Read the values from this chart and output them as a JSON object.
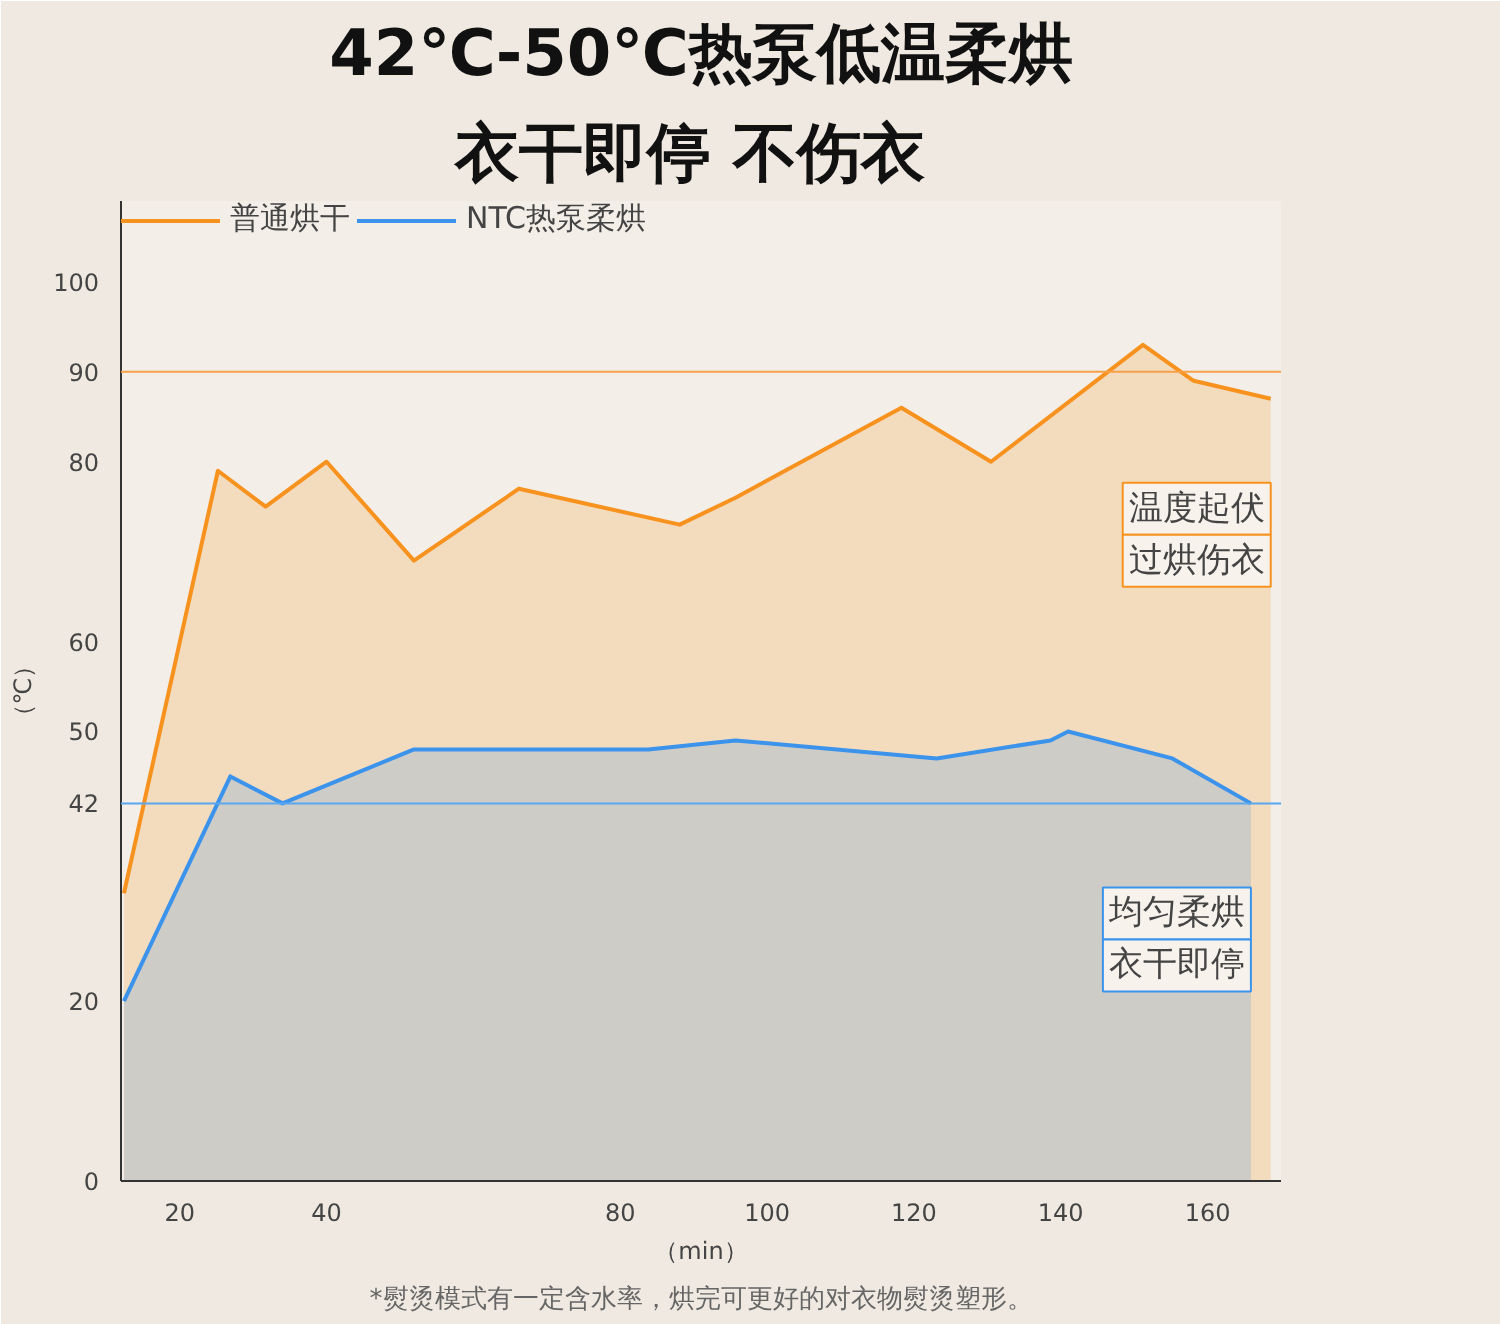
{
  "chart_data": {
    "type": "area",
    "title": "42℃-50℃热泵低温柔烘",
    "subtitle": "衣干即停  不伤衣",
    "xlabel": "（min）",
    "ylabel": "（℃）",
    "xlim": [
      12,
      170
    ],
    "xticks": [
      20,
      40,
      80,
      100,
      120,
      140,
      160
    ],
    "ylim": [
      0,
      109
    ],
    "yticks": [
      0,
      20,
      {
        "value": 42,
        "label": "42"
      },
      50,
      60,
      80,
      {
        "value": 90,
        "label": "90"
      },
      100
    ],
    "grid": false,
    "legend": "top left",
    "marker": "none",
    "line_style": "solid",
    "ref_lines": [
      {
        "axis": "y",
        "value": 90,
        "color": "#f7a04a"
      },
      {
        "axis": "y",
        "value": 42,
        "color": "#5aa6ef"
      }
    ],
    "annotations": [
      "温度起伏",
      "过烘伤衣",
      "均匀柔烘",
      "衣干即停",
      "*熨烫模式有一定含水率，烘完可更好的对衣物熨烫塑形。"
    ],
    "series": [
      {
        "name": "普通烘干",
        "color": "#f7921e",
        "x": [
          12.4,
          25.2,
          31.7,
          40,
          51.9,
          66.2,
          88.1,
          95.7,
          118.3,
          130.5,
          151.2,
          158.1,
          168.6
        ],
        "values": [
          32,
          79,
          75,
          80,
          69,
          77,
          73,
          76,
          86,
          80,
          93,
          89,
          87
        ]
      },
      {
        "name": "NTC热泵柔烘",
        "color": "#3b93ec",
        "x": [
          12.4,
          26.9,
          34,
          51.9,
          83.8,
          95.7,
          123.1,
          138.6,
          141,
          155.2,
          165.9
        ],
        "values": [
          20,
          45,
          42,
          48,
          48,
          49,
          47,
          49,
          50,
          47,
          42
        ]
      }
    ]
  }
}
